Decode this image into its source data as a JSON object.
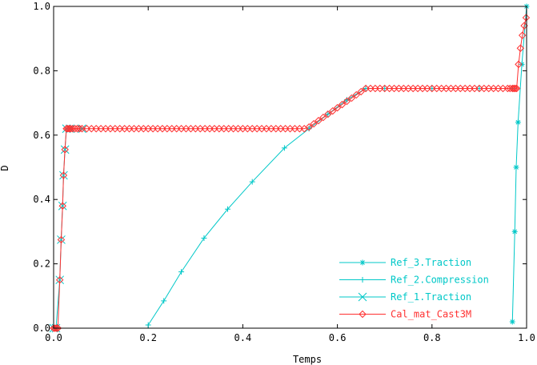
{
  "chart_data": {
    "type": "line",
    "xlabel": "Temps",
    "ylabel": "D",
    "xlim": [
      0.0,
      1.0
    ],
    "ylim": [
      0.0,
      1.0
    ],
    "x_ticks": [
      0.0,
      0.2,
      0.4,
      0.6,
      0.8,
      1.0
    ],
    "y_ticks": [
      0.0,
      0.2,
      0.4,
      0.6,
      0.8,
      1.0
    ],
    "x_tick_labels": [
      "0.0",
      "0.2",
      "0.4",
      "0.6",
      "0.8",
      "1.0"
    ],
    "y_tick_labels": [
      "0.0",
      "0.2",
      "0.4",
      "0.6",
      "0.8",
      "1.0"
    ],
    "grid": false,
    "legend_position": "bottom-right",
    "series": [
      {
        "name": "Ref_3.Traction",
        "color": "#00c8c8",
        "marker": "star",
        "x": [
          0.97,
          0.975,
          0.978,
          0.982,
          0.99,
          1.0
        ],
        "y": [
          0.02,
          0.3,
          0.5,
          0.64,
          0.82,
          1.0
        ]
      },
      {
        "name": "Ref_2.Compression",
        "color": "#00c8c8",
        "marker": "plus",
        "x": [
          0.2,
          0.233,
          0.27,
          0.318,
          0.368,
          0.42,
          0.488,
          0.54,
          0.58,
          0.62,
          0.66,
          0.7,
          0.8,
          0.9,
          0.97
        ],
        "y": [
          0.01,
          0.085,
          0.175,
          0.28,
          0.37,
          0.455,
          0.56,
          0.62,
          0.665,
          0.71,
          0.745,
          0.745,
          0.745,
          0.745,
          0.745
        ]
      },
      {
        "name": "Ref_1.Traction",
        "color": "#00c8c8",
        "marker": "cross",
        "x": [
          0.0,
          0.005,
          0.013,
          0.016,
          0.019,
          0.021,
          0.024,
          0.027,
          0.035,
          0.06
        ],
        "y": [
          0.0,
          0.0,
          0.15,
          0.275,
          0.38,
          0.475,
          0.555,
          0.62,
          0.62,
          0.62
        ]
      },
      {
        "name": "Cal_mat_Cast3M",
        "color": "#ff3030",
        "marker": "diamond",
        "x": [
          0.0,
          0.003,
          0.006,
          0.009,
          0.013,
          0.016,
          0.019,
          0.021,
          0.024,
          0.027,
          0.03,
          0.033,
          0.036,
          0.04,
          0.045,
          0.05,
          0.055,
          0.06,
          0.07,
          0.08,
          0.09,
          0.1,
          0.11,
          0.12,
          0.13,
          0.14,
          0.15,
          0.16,
          0.17,
          0.18,
          0.19,
          0.2,
          0.21,
          0.22,
          0.23,
          0.24,
          0.25,
          0.26,
          0.27,
          0.28,
          0.29,
          0.3,
          0.31,
          0.32,
          0.33,
          0.34,
          0.35,
          0.36,
          0.37,
          0.38,
          0.39,
          0.4,
          0.41,
          0.42,
          0.43,
          0.44,
          0.45,
          0.46,
          0.47,
          0.48,
          0.49,
          0.5,
          0.51,
          0.52,
          0.53,
          0.54,
          0.55,
          0.56,
          0.57,
          0.58,
          0.59,
          0.6,
          0.61,
          0.62,
          0.63,
          0.64,
          0.65,
          0.66,
          0.67,
          0.68,
          0.69,
          0.7,
          0.71,
          0.72,
          0.73,
          0.74,
          0.75,
          0.76,
          0.77,
          0.78,
          0.79,
          0.8,
          0.81,
          0.82,
          0.83,
          0.84,
          0.85,
          0.86,
          0.87,
          0.88,
          0.89,
          0.9,
          0.91,
          0.92,
          0.93,
          0.94,
          0.95,
          0.96,
          0.965,
          0.97,
          0.973,
          0.976,
          0.979,
          0.983,
          0.987,
          0.991,
          0.995,
          0.999
        ],
        "y": [
          0.0,
          0.0,
          0.0,
          0.0,
          0.15,
          0.275,
          0.38,
          0.475,
          0.555,
          0.62,
          0.62,
          0.62,
          0.62,
          0.62,
          0.62,
          0.62,
          0.62,
          0.62,
          0.62,
          0.62,
          0.62,
          0.62,
          0.62,
          0.62,
          0.62,
          0.62,
          0.62,
          0.62,
          0.62,
          0.62,
          0.62,
          0.62,
          0.62,
          0.62,
          0.62,
          0.62,
          0.62,
          0.62,
          0.62,
          0.62,
          0.62,
          0.62,
          0.62,
          0.62,
          0.62,
          0.62,
          0.62,
          0.62,
          0.62,
          0.62,
          0.62,
          0.62,
          0.62,
          0.62,
          0.62,
          0.62,
          0.62,
          0.62,
          0.62,
          0.62,
          0.62,
          0.62,
          0.62,
          0.62,
          0.62,
          0.625,
          0.635,
          0.645,
          0.655,
          0.665,
          0.675,
          0.685,
          0.695,
          0.705,
          0.715,
          0.725,
          0.735,
          0.745,
          0.745,
          0.745,
          0.745,
          0.745,
          0.745,
          0.745,
          0.745,
          0.745,
          0.745,
          0.745,
          0.745,
          0.745,
          0.745,
          0.745,
          0.745,
          0.745,
          0.745,
          0.745,
          0.745,
          0.745,
          0.745,
          0.745,
          0.745,
          0.745,
          0.745,
          0.745,
          0.745,
          0.745,
          0.745,
          0.745,
          0.745,
          0.745,
          0.745,
          0.745,
          0.745,
          0.82,
          0.87,
          0.91,
          0.94,
          0.965
        ]
      }
    ]
  }
}
